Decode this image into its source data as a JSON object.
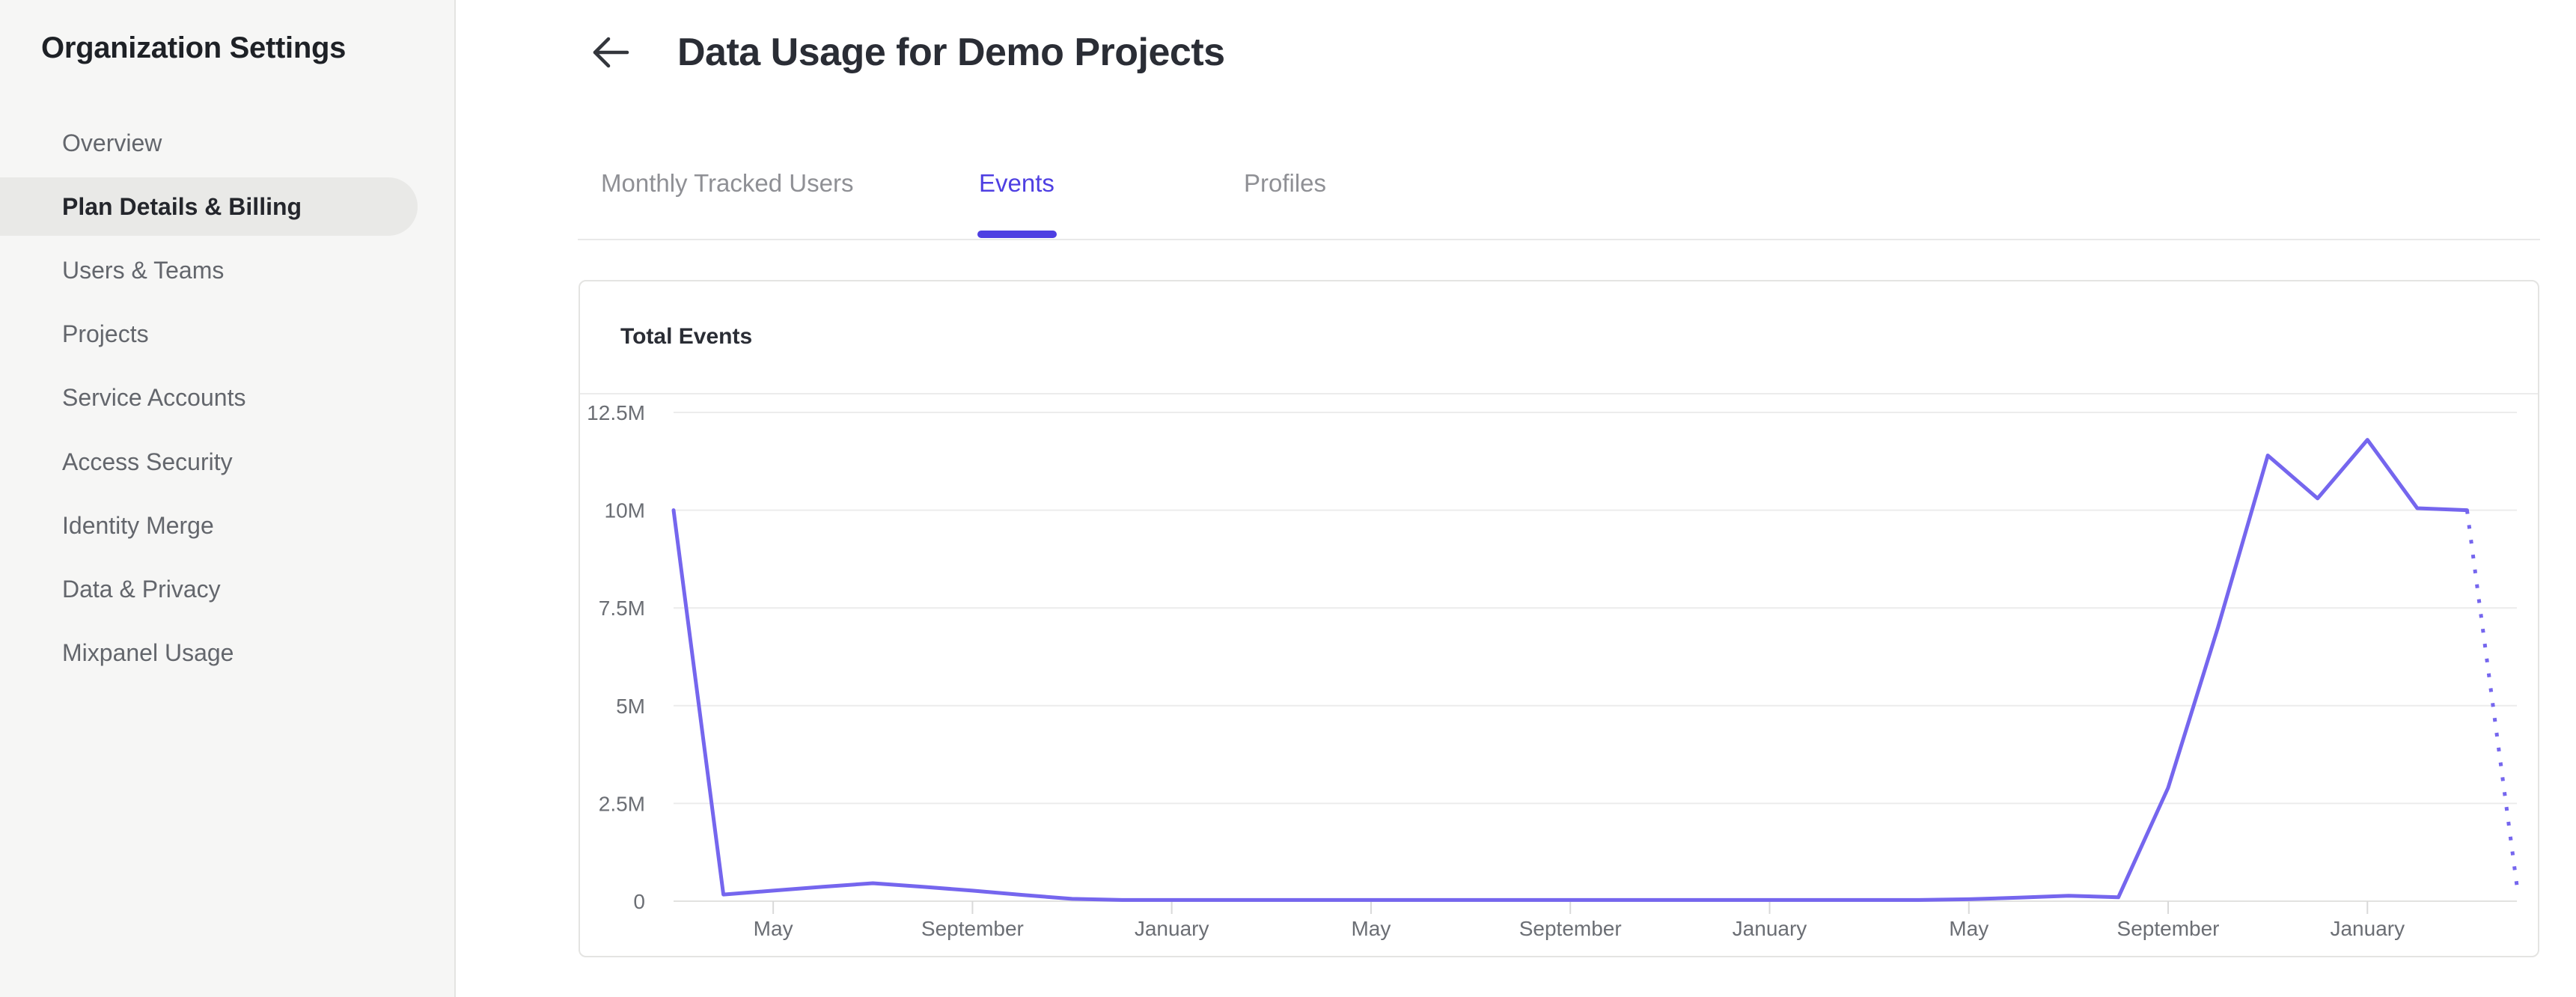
{
  "sidebar": {
    "title": "Organization Settings",
    "items": [
      {
        "label": "Overview",
        "active": false
      },
      {
        "label": "Plan Details & Billing",
        "active": true
      },
      {
        "label": "Users & Teams",
        "active": false
      },
      {
        "label": "Projects",
        "active": false
      },
      {
        "label": "Service Accounts",
        "active": false
      },
      {
        "label": "Access Security",
        "active": false
      },
      {
        "label": "Identity Merge",
        "active": false
      },
      {
        "label": "Data & Privacy",
        "active": false
      },
      {
        "label": "Mixpanel Usage",
        "active": false
      }
    ]
  },
  "header": {
    "title": "Data Usage for Demo Projects",
    "back_icon": "left-arrow-icon"
  },
  "tabs": [
    {
      "label": "Monthly Tracked Users",
      "active": false
    },
    {
      "label": "Events",
      "active": true
    },
    {
      "label": "Profiles",
      "active": false
    }
  ],
  "card": {
    "title": "Total Events"
  },
  "colors": {
    "accent_purple": "#4e3fe2",
    "line_purple": "#7566ee",
    "sidebar_bg": "#f6f6f5",
    "active_pill": "#e9e9e7",
    "gridline": "#ececec",
    "axis_text": "#6b6e74"
  },
  "chart_data": {
    "type": "line",
    "title": "Total Events",
    "ylabel": "",
    "xlabel": "",
    "unit": "events, millions",
    "grid": "horizontal",
    "legend_position": "none",
    "ylim_millions": [
      0,
      12.5
    ],
    "y_ticks_millions": [
      0,
      2.5,
      5,
      7.5,
      10,
      12.5
    ],
    "y_tick_labels": [
      "0",
      "2.5M",
      "5M",
      "7.5M",
      "10M",
      "12.5M"
    ],
    "x_labels": [
      {
        "index": 2,
        "label": "May"
      },
      {
        "index": 6,
        "label": "September"
      },
      {
        "index": 10,
        "label": "January"
      },
      {
        "index": 14,
        "label": "May"
      },
      {
        "index": 18,
        "label": "September"
      },
      {
        "index": 22,
        "label": "January"
      },
      {
        "index": 26,
        "label": "May"
      },
      {
        "index": 30,
        "label": "September"
      },
      {
        "index": 34,
        "label": "January"
      }
    ],
    "x_note": "monthly points, index 0 = two months before first May label",
    "solid_end_index": 36,
    "last_segment_style": "dotted projection",
    "series": [
      {
        "name": "Total Events",
        "values_millions": [
          10,
          0.17,
          0.27,
          0.37,
          0.46,
          0.37,
          0.27,
          0.16,
          0.06,
          0.03,
          0.03,
          0.03,
          0.03,
          0.03,
          0.03,
          0.03,
          0.03,
          0.03,
          0.03,
          0.03,
          0.03,
          0.03,
          0.03,
          0.03,
          0.03,
          0.03,
          0.05,
          0.09,
          0.14,
          0.1,
          2.9,
          7.0,
          11.4,
          10.3,
          11.8,
          10.05,
          10.0,
          0.4
        ]
      }
    ]
  }
}
